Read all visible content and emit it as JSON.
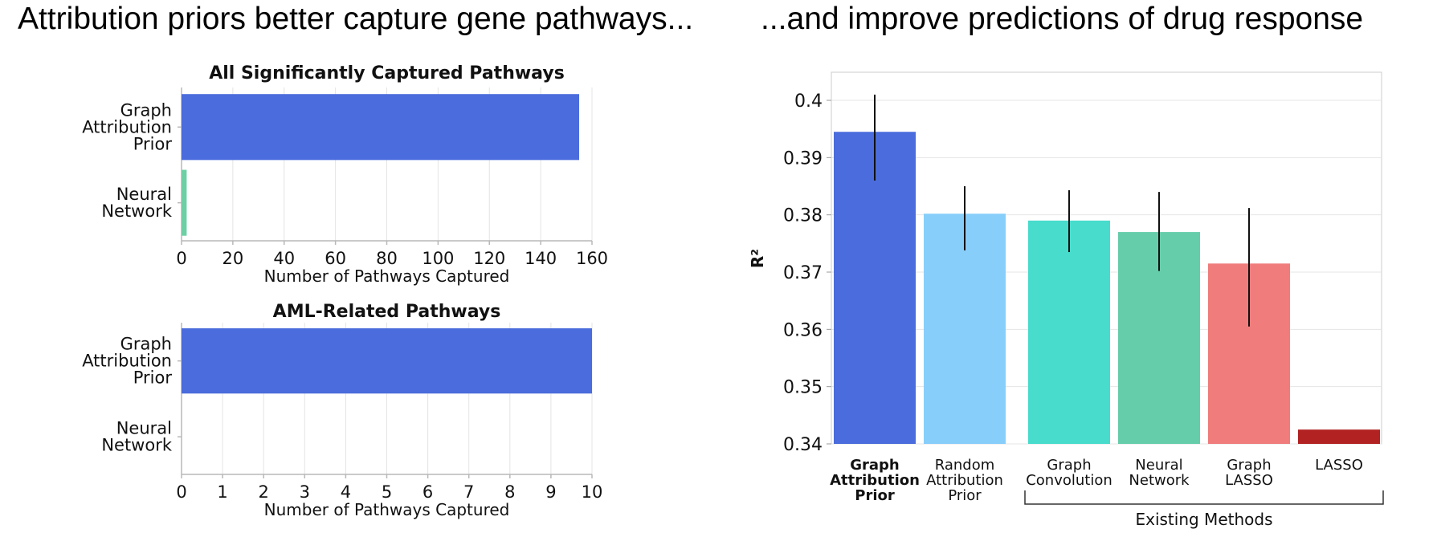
{
  "headlines": {
    "left": "Attribution priors better capture gene pathways...",
    "right": "...and improve predictions of drug response"
  },
  "colors": {
    "graph_attribution_prior": "#4a6cdc",
    "neural_network_small": "#6dd0a4",
    "random_attribution_prior": "#87cefa",
    "graph_convolution": "#48dccc",
    "neural_network": "#66cdaa",
    "graph_lasso": "#f07c7c",
    "lasso": "#b22222",
    "grid": "#e4e4e4",
    "axis": "#b8b8b8"
  },
  "chart_data": [
    {
      "type": "bar",
      "orientation": "horizontal",
      "title": "All Significantly Captured Pathways",
      "categories": [
        [
          "Graph",
          "Attribution",
          "Prior"
        ],
        [
          "Neural",
          "Network"
        ]
      ],
      "values": [
        155,
        2
      ],
      "xlabel": "Number of Pathways Captured",
      "xlim": [
        0,
        160
      ],
      "xticks": [
        0,
        20,
        40,
        60,
        80,
        100,
        120,
        140,
        160
      ],
      "grid": true
    },
    {
      "type": "bar",
      "orientation": "horizontal",
      "title": "AML-Related Pathways",
      "categories": [
        [
          "Graph",
          "Attribution",
          "Prior"
        ],
        [
          "Neural",
          "Network"
        ]
      ],
      "values": [
        10,
        0
      ],
      "xlabel": "Number of Pathways Captured",
      "xlim": [
        0,
        10
      ],
      "xticks": [
        0,
        1,
        2,
        3,
        4,
        5,
        6,
        7,
        8,
        9,
        10
      ],
      "grid": true
    },
    {
      "type": "bar",
      "orientation": "vertical",
      "ylabel": "R²",
      "ylim": [
        0.34,
        0.405
      ],
      "yticks": [
        0.34,
        0.35,
        0.36,
        0.37,
        0.38,
        0.39,
        0.4
      ],
      "ytick_labels": [
        "0.34",
        "0.35",
        "0.36",
        "0.37",
        "0.38",
        "0.39",
        "0.4"
      ],
      "categories": [
        [
          "Graph",
          "Attribution",
          "Prior"
        ],
        [
          "Random",
          "Attribution",
          "Prior"
        ],
        [
          "Graph",
          "Convolution"
        ],
        [
          "Neural",
          "Network"
        ],
        [
          "Graph",
          "LASSO"
        ],
        [
          "LASSO"
        ]
      ],
      "bold_categories": [
        0
      ],
      "values": [
        0.3945,
        0.3802,
        0.379,
        0.377,
        0.3715,
        0.3425
      ],
      "error_low": [
        0.386,
        0.3738,
        0.3735,
        0.3702,
        0.3605,
        null
      ],
      "error_high": [
        0.401,
        0.385,
        0.3843,
        0.384,
        0.3812,
        null
      ],
      "group_label": "Existing Methods",
      "group_members": [
        2,
        5
      ],
      "grid": true
    }
  ]
}
